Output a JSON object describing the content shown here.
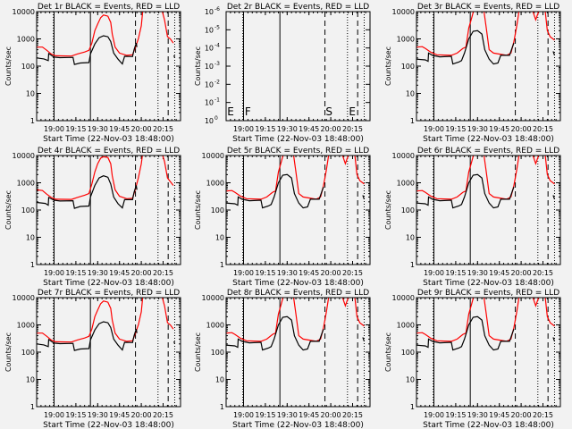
{
  "chart_data": {
    "type": "line",
    "layout": "3x3 grid",
    "xlabel": "Start Time (22-Nov-03 18:48:00)",
    "ylabel": "Counts/sec",
    "x_units": "minutes after 18:48",
    "xlim": [
      0,
      99
    ],
    "x_ticks": [
      {
        "t": 12,
        "label": "19:00"
      },
      {
        "t": 27,
        "label": "19:15"
      },
      {
        "t": 42,
        "label": "19:30"
      },
      {
        "t": 57,
        "label": "19:45"
      },
      {
        "t": 72,
        "label": "20:00"
      },
      {
        "t": 87,
        "label": "20:15"
      }
    ],
    "ylim": [
      1,
      10000
    ],
    "y_scale": "log",
    "y_ticks": [
      "1",
      "10",
      "100",
      "1000",
      "10000"
    ],
    "series_colors": {
      "black": "#000000",
      "red": "#ff0000"
    },
    "vlines": [
      {
        "t": 12,
        "style": "solid"
      },
      {
        "t": 11.5,
        "style": "dotted"
      },
      {
        "t": 37,
        "style": "solid"
      },
      {
        "t": 68,
        "style": "dashed"
      },
      {
        "t": 83.5,
        "style": "dotted"
      },
      {
        "t": 90.5,
        "style": "dashed"
      },
      {
        "t": 95,
        "style": "dotted"
      }
    ],
    "panels": [
      {
        "title": "Det 1r BLACK = Events, RED = LLD",
        "style": "A"
      },
      {
        "title": "Det 2r BLACK = Events, RED = LLD",
        "style": "empty",
        "y_ticks_special": [
          [
            "10",
            "0"
          ],
          [
            "10",
            "-1"
          ],
          [
            "10",
            "-2"
          ],
          [
            "10",
            "-3"
          ],
          [
            "10",
            "-4"
          ],
          [
            "10",
            "-5"
          ],
          [
            "10",
            "-6"
          ]
        ],
        "markers": [
          {
            "t": 0.8,
            "label": "E"
          },
          {
            "t": 12.8,
            "label": "F"
          },
          {
            "t": 68.5,
            "label": "S"
          },
          {
            "t": 84.5,
            "label": "E"
          }
        ]
      },
      {
        "title": "Det 3r BLACK = Events, RED = LLD",
        "style": "B"
      },
      {
        "title": "Det 4r BLACK = Events, RED = LLD",
        "style": "C"
      },
      {
        "title": "Det 5r BLACK = Events, RED = LLD",
        "style": "B"
      },
      {
        "title": "Det 6r BLACK = Events, RED = LLD",
        "style": "B"
      },
      {
        "title": "Det 7r BLACK = Events, RED = LLD",
        "style": "A"
      },
      {
        "title": "Det 8r BLACK = Events, RED = LLD",
        "style": "B"
      },
      {
        "title": "Det 9r BLACK = Events, RED = LLD",
        "style": "B"
      }
    ],
    "styles": {
      "A": {
        "black": [
          [
            [
              0,
              200
            ],
            [
              5,
              185
            ],
            [
              8,
              160
            ],
            [
              8.3,
              290
            ],
            [
              12,
              215
            ],
            [
              16,
              205
            ],
            [
              25,
              210
            ],
            [
              26,
              115
            ],
            [
              30,
              130
            ],
            [
              36,
              135
            ],
            [
              37,
              280
            ],
            [
              40,
              650
            ],
            [
              43,
              1100
            ],
            [
              46,
              1300
            ],
            [
              49,
              1200
            ],
            [
              51,
              800
            ],
            [
              53,
              300
            ],
            [
              56,
              180
            ],
            [
              59,
              120
            ],
            [
              60.5,
              230
            ],
            [
              66,
              225
            ],
            [
              67,
              400
            ],
            [
              68.5,
              700
            ],
            [
              69,
              500
            ]
          ],
          [
            [
              94.5,
              250
            ],
            [
              95,
              200
            ]
          ]
        ],
        "red": [
          [
            [
              0,
              500
            ],
            [
              4,
              500
            ],
            [
              7,
              380
            ],
            [
              10,
              280
            ],
            [
              13,
              240
            ],
            [
              24,
              235
            ],
            [
              28,
              280
            ],
            [
              33,
              330
            ],
            [
              36,
              380
            ],
            [
              38,
              700
            ],
            [
              40,
              2000
            ],
            [
              42,
              3500
            ],
            [
              44,
              6000
            ],
            [
              46,
              7500
            ],
            [
              49,
              6800
            ],
            [
              51,
              4000
            ],
            [
              52,
              1500
            ],
            [
              54,
              500
            ],
            [
              57,
              300
            ],
            [
              62,
              250
            ],
            [
              66,
              260
            ],
            [
              68,
              500
            ],
            [
              70,
              1000
            ],
            [
              72,
              3000
            ],
            [
              73.5,
              20000
            ]
          ],
          [
            [
              85,
              20000
            ],
            [
              88,
              5000
            ],
            [
              90,
              1200
            ],
            [
              92,
              1000
            ],
            [
              94,
              700
            ]
          ]
        ]
      },
      "B": {
        "black": [
          [
            [
              0,
              180
            ],
            [
              6,
              170
            ],
            [
              8,
              150
            ],
            [
              8.3,
              300
            ],
            [
              11,
              250
            ],
            [
              16,
              220
            ],
            [
              24,
              230
            ],
            [
              25,
              120
            ],
            [
              29,
              140
            ],
            [
              31,
              160
            ],
            [
              33,
              300
            ],
            [
              36,
              1000
            ],
            [
              39,
              1900
            ],
            [
              42,
              2000
            ],
            [
              45,
              1500
            ],
            [
              47,
              400
            ],
            [
              50,
              180
            ],
            [
              53,
              120
            ],
            [
              56,
              130
            ],
            [
              58,
              250
            ],
            [
              64,
              250
            ],
            [
              66,
              500
            ],
            [
              67,
              700
            ]
          ],
          [
            [
              94,
              350
            ],
            [
              95,
              250
            ]
          ]
        ],
        "red": [
          [
            [
              0,
              500
            ],
            [
              4,
              520
            ],
            [
              6,
              450
            ],
            [
              10,
              320
            ],
            [
              14,
              260
            ],
            [
              24,
              250
            ],
            [
              28,
              300
            ],
            [
              32,
              450
            ],
            [
              34,
              500
            ],
            [
              36,
              2500
            ],
            [
              38,
              6000
            ],
            [
              40,
              15000
            ],
            [
              46,
              15000
            ],
            [
              48,
              2500
            ],
            [
              50,
              400
            ],
            [
              53,
              300
            ],
            [
              62,
              250
            ],
            [
              65,
              300
            ],
            [
              67,
              800
            ],
            [
              69,
              3000
            ],
            [
              71,
              15000
            ]
          ],
          [
            [
              79,
              15000
            ],
            [
              82,
              5000
            ],
            [
              84,
              10000
            ],
            [
              88,
              20000
            ],
            [
              90,
              2000
            ],
            [
              92,
              1200
            ],
            [
              95,
              900
            ]
          ]
        ]
      },
      "C": {
        "black": [
          [
            [
              0,
              190
            ],
            [
              6,
              175
            ],
            [
              8,
              150
            ],
            [
              8.3,
              290
            ],
            [
              12,
              230
            ],
            [
              16,
              215
            ],
            [
              25,
              220
            ],
            [
              26,
              115
            ],
            [
              30,
              135
            ],
            [
              36,
              140
            ],
            [
              37,
              300
            ],
            [
              40,
              800
            ],
            [
              43,
              1500
            ],
            [
              46,
              1800
            ],
            [
              49,
              1600
            ],
            [
              51,
              900
            ],
            [
              53,
              300
            ],
            [
              56,
              170
            ],
            [
              59,
              120
            ],
            [
              60.5,
              240
            ],
            [
              66,
              240
            ],
            [
              67,
              450
            ],
            [
              68.5,
              800
            ],
            [
              69,
              550
            ]
          ],
          [
            [
              94.5,
              280
            ],
            [
              95,
              220
            ]
          ]
        ],
        "red": [
          [
            [
              0,
              550
            ],
            [
              4,
              520
            ],
            [
              7,
              380
            ],
            [
              10,
              290
            ],
            [
              13,
              250
            ],
            [
              24,
              245
            ],
            [
              28,
              290
            ],
            [
              33,
              350
            ],
            [
              36,
              400
            ],
            [
              38,
              900
            ],
            [
              40,
              2500
            ],
            [
              42,
              5000
            ],
            [
              44,
              8000
            ],
            [
              46,
              9000
            ],
            [
              49,
              8500
            ],
            [
              51,
              5000
            ],
            [
              52,
              1800
            ],
            [
              54,
              550
            ],
            [
              57,
              320
            ],
            [
              62,
              260
            ],
            [
              66,
              270
            ],
            [
              68,
              600
            ],
            [
              70,
              1500
            ],
            [
              72,
              5000
            ],
            [
              73.5,
              20000
            ]
          ],
          [
            [
              85,
              20000
            ],
            [
              88,
              6000
            ],
            [
              90,
              1500
            ],
            [
              92,
              1100
            ],
            [
              94,
              800
            ]
          ]
        ]
      }
    }
  }
}
